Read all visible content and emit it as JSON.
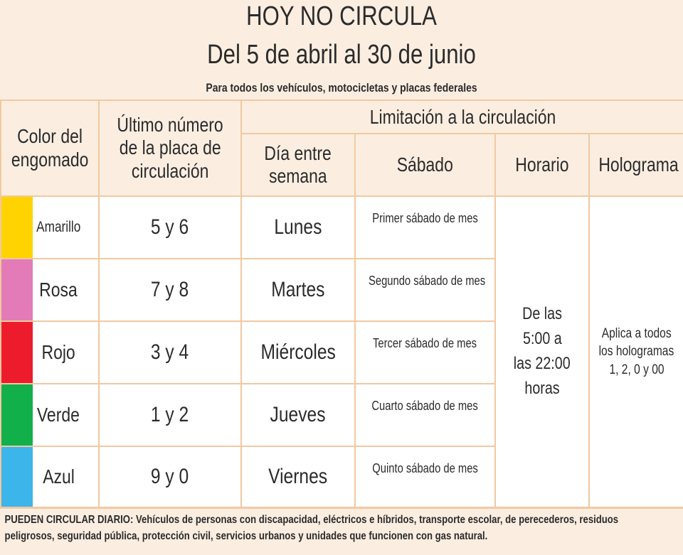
{
  "header": {
    "title": "HOY NO CIRCULA",
    "subtitle": "Del 5 de abril al 30 de junio",
    "scope": "Para todos los vehículos, motocicletas y placas federales"
  },
  "columns": {
    "color": [
      "Color del",
      "engomado"
    ],
    "plate": [
      "Último número",
      "de la placa de",
      "circulación"
    ],
    "limitation": "Limitación a la circulación",
    "weekday": [
      "Día entre",
      "semana"
    ],
    "saturday": "Sábado",
    "schedule": "Horario",
    "hologram": "Holograma"
  },
  "rows": [
    {
      "color": "Amarillo",
      "swatch": "#ffd300",
      "digits": "5 y 6",
      "day": "Lunes",
      "saturday": "Primer sábado de mes"
    },
    {
      "color": "Rosa",
      "swatch": "#e37bb8",
      "digits": "7 y 8",
      "day": "Martes",
      "saturday": "Segundo sábado de mes"
    },
    {
      "color": "Rojo",
      "swatch": "#ec1c2c",
      "digits": "3 y 4",
      "day": "Miércoles",
      "saturday": "Tercer sábado de mes"
    },
    {
      "color": "Verde",
      "swatch": "#12b04b",
      "digits": "1 y 2",
      "day": "Jueves",
      "saturday": "Cuarto sábado de mes"
    },
    {
      "color": "Azul",
      "swatch": "#3cb5ea",
      "digits": "9 y 0",
      "day": "Viernes",
      "saturday": "Quinto sábado de mes"
    }
  ],
  "schedule": [
    "De las",
    "5:00 a",
    "las 22:00",
    "horas"
  ],
  "hologram": [
    "Aplica a todos",
    "los hologramas",
    "1, 2, 0 y 00"
  ],
  "footer": {
    "lead": "PUEDEN CIRCULAR DIARIO:",
    "text": " Vehículos de personas con discapacidad, eléctricos e híbridos, transporte escolar, de perecederos, residuos peligrosos, seguridad pública, protección civil, servicios urbanos y unidades que funcionen con gas natural."
  }
}
